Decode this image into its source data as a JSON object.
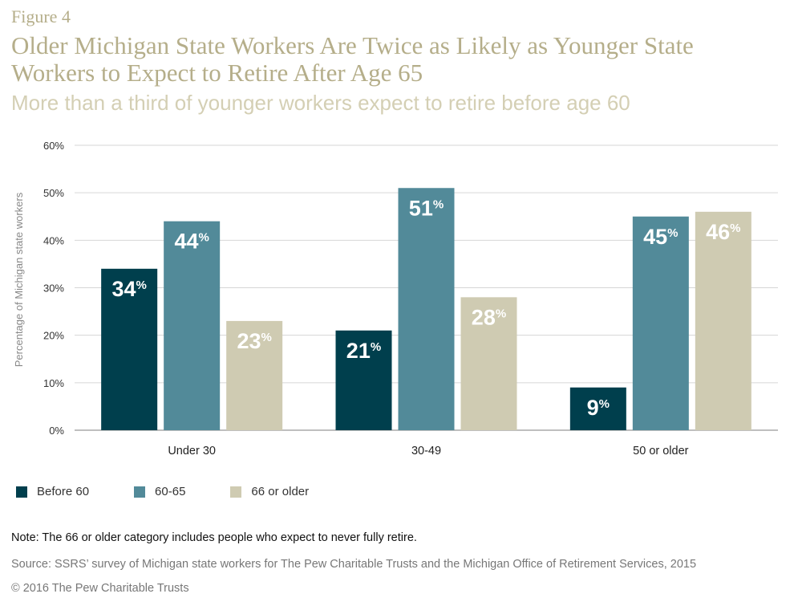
{
  "figure_label": "Figure 4",
  "title": "Older Michigan State Workers Are Twice as Likely as Younger State Workers to Expect to Retire After Age 65",
  "subtitle": "More than a third of younger workers expect to retire before age 60",
  "note": "Note: The 66 or older category includes people who expect to never fully retire.",
  "source": "Source: SSRS’ survey of Michigan state workers for The Pew Charitable Trusts and the Michigan Office of Retirement Services, 2015",
  "copyright": "© 2016 The Pew Charitable Trusts",
  "chart_data": {
    "type": "bar",
    "title": "Older Michigan State Workers Are Twice as Likely as Younger State Workers to Expect to Retire After Age 65",
    "subtitle": "More than a third of younger workers expect to retire before age 60",
    "xlabel": "",
    "ylabel": "Percentage of Michigan state workers",
    "ylim": [
      0,
      60
    ],
    "yticks": [
      "0%",
      "10%",
      "20%",
      "30%",
      "40%",
      "50%",
      "60%"
    ],
    "categories": [
      "Under 30",
      "30-49",
      "50 or older"
    ],
    "series": [
      {
        "name": "Before 60",
        "color": "#003f4d",
        "values": [
          34,
          21,
          9
        ]
      },
      {
        "name": "60-65",
        "color": "#528a99",
        "values": [
          44,
          51,
          45
        ]
      },
      {
        "name": "66 or older",
        "color": "#cfcbb2",
        "values": [
          23,
          28,
          46
        ]
      }
    ],
    "grid": true,
    "legend": "bottom-left",
    "value_suffix": "%"
  }
}
